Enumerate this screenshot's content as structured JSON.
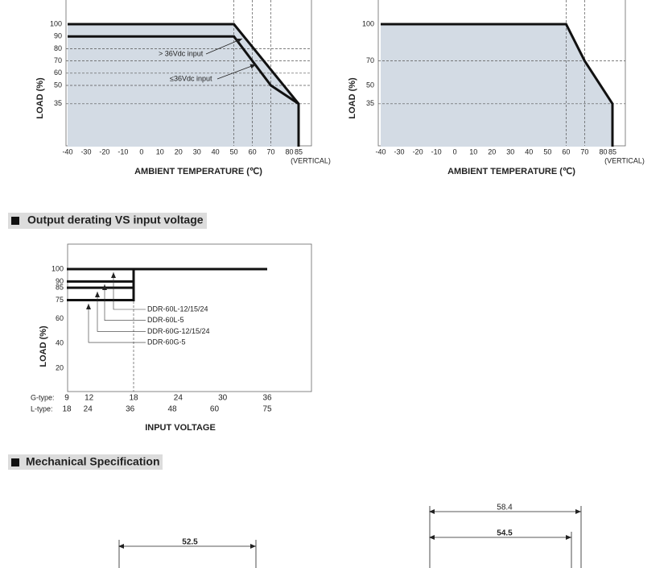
{
  "derating_charts": [
    {
      "y_label": "LOAD (%)",
      "x_label": "AMBIENT TEMPERATURE (℃)",
      "x_note": "(VERTICAL)",
      "xticks": [
        -40,
        -30,
        -20,
        -10,
        0,
        10,
        20,
        30,
        40,
        50,
        60,
        70,
        80,
        85
      ],
      "yticks": [
        100,
        90,
        80,
        70,
        60,
        50,
        35
      ],
      "ref_x": [
        50,
        60,
        70
      ],
      "ref_y": [
        80,
        70,
        60,
        50,
        35
      ],
      "curves": [
        {
          "x": [
            -40,
            50,
            85,
            85
          ],
          "y": [
            100,
            100,
            35,
            0
          ]
        },
        {
          "x": [
            -40,
            50,
            70,
            85
          ],
          "y": [
            90,
            90,
            50,
            35
          ]
        }
      ],
      "annotations": [
        "> 36Vdc input",
        "≤36Vdc input"
      ]
    },
    {
      "y_label": "LOAD (%)",
      "x_label": "AMBIENT TEMPERATURE (℃)",
      "x_note": "(VERTICAL)",
      "xticks": [
        -40,
        -30,
        -20,
        -10,
        0,
        10,
        20,
        30,
        40,
        50,
        60,
        70,
        80,
        85
      ],
      "yticks": [
        100,
        70,
        50,
        35
      ],
      "ref_x": [
        60,
        70
      ],
      "ref_y": [
        70,
        35
      ],
      "curves": [
        {
          "x": [
            -40,
            60,
            70,
            85,
            85
          ],
          "y": [
            100,
            100,
            70,
            35,
            0
          ]
        }
      ],
      "annotations": []
    }
  ],
  "sections": [
    {
      "heading": "Output derating VS input voltage"
    },
    {
      "heading": "Mechanical Specification"
    }
  ],
  "voltage_chart": {
    "y_label": "LOAD (%)",
    "x_label": "INPUT VOLTAGE",
    "yticks": [
      100,
      90,
      85,
      75,
      60,
      40,
      20
    ],
    "x_rows": [
      {
        "label": "G-type:",
        "ticks": [
          9,
          12,
          18,
          24,
          30,
          36
        ]
      },
      {
        "label": "L-type:",
        "ticks": [
          18,
          24,
          36,
          48,
          60,
          75
        ]
      }
    ],
    "ref_x": [
      18
    ],
    "curves": [
      {
        "x": [
          9,
          36
        ],
        "y": [
          100,
          100
        ]
      },
      {
        "x": [
          9,
          18
        ],
        "y": [
          90,
          90
        ]
      },
      {
        "x": [
          9,
          18
        ],
        "y": [
          85,
          85
        ]
      },
      {
        "x": [
          9,
          18,
          18
        ],
        "y": [
          75,
          75,
          100
        ]
      }
    ],
    "models": [
      "DDR-60L-12/15/24",
      "DDR-60L-5",
      "DDR-60G-12/15/24",
      "DDR-60G-5"
    ]
  },
  "dimensions": [
    52.5,
    58.4,
    54.5
  ]
}
